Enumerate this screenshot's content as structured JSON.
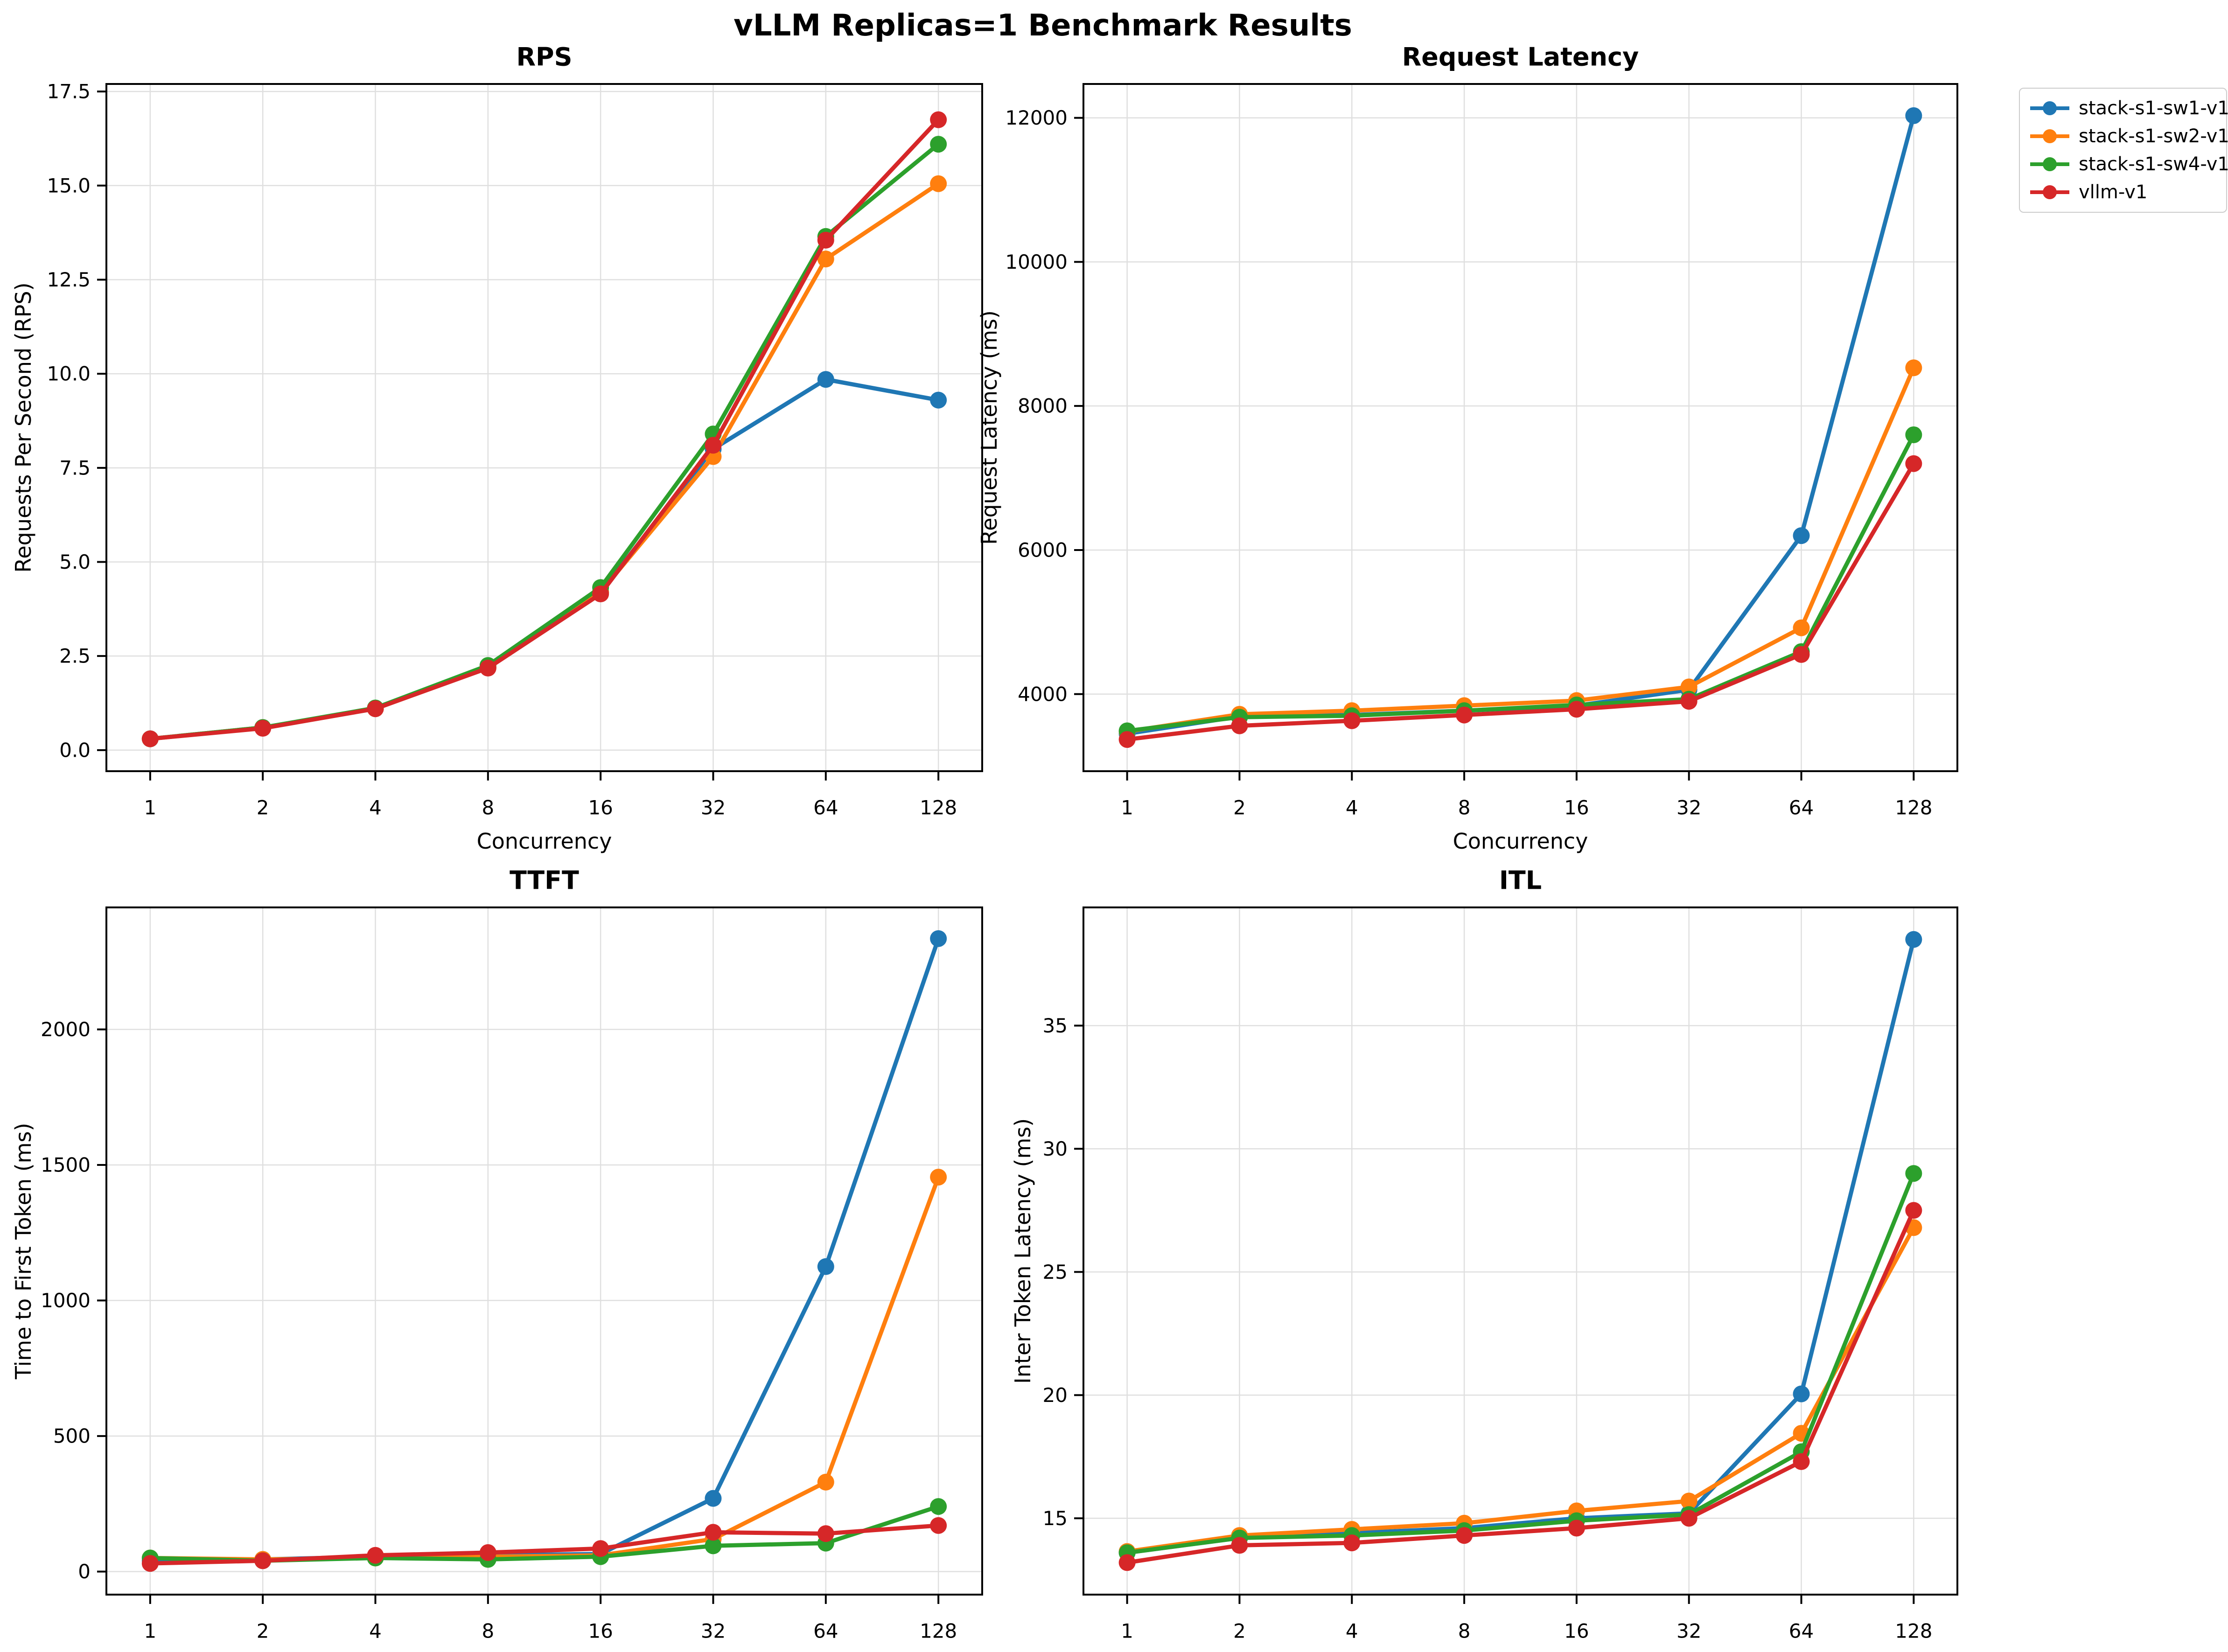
{
  "page_title": "vLLM Replicas=1 Benchmark Results",
  "legend": {
    "items": [
      {
        "label": "stack-s1-sw1-v1",
        "color": "#1f77b4"
      },
      {
        "label": "stack-s1-sw2-v1",
        "color": "#ff7f0e"
      },
      {
        "label": "stack-s1-sw4-v1",
        "color": "#2ca02c"
      },
      {
        "label": "vllm-v1",
        "color": "#d62728"
      }
    ]
  },
  "chart_data": [
    {
      "type": "line",
      "title": "RPS",
      "xlabel": "Concurrency",
      "ylabel": "Requests Per Second (RPS)",
      "grid": true,
      "x_categories": [
        "1",
        "2",
        "4",
        "8",
        "16",
        "32",
        "64",
        "128"
      ],
      "ylim": [
        -0.56,
        17.7
      ],
      "yticks": [
        {
          "v": 0,
          "label": "0.0"
        },
        {
          "v": 2.5,
          "label": "2.5"
        },
        {
          "v": 5,
          "label": "5.0"
        },
        {
          "v": 7.5,
          "label": "7.5"
        },
        {
          "v": 10,
          "label": "10.0"
        },
        {
          "v": 12.5,
          "label": "12.5"
        },
        {
          "v": 15,
          "label": "15.0"
        },
        {
          "v": 17.5,
          "label": "17.5"
        }
      ],
      "series": [
        {
          "name": "stack-s1-sw1-v1",
          "color": "#1f77b4",
          "values": [
            0.3,
            0.6,
            1.1,
            2.2,
            4.2,
            8.0,
            9.85,
            9.3
          ]
        },
        {
          "name": "stack-s1-sw2-v1",
          "color": "#ff7f0e",
          "values": [
            0.3,
            0.6,
            1.1,
            2.2,
            4.2,
            7.8,
            13.05,
            15.05
          ]
        },
        {
          "name": "stack-s1-sw4-v1",
          "color": "#2ca02c",
          "values": [
            0.3,
            0.6,
            1.12,
            2.25,
            4.32,
            8.4,
            13.65,
            16.1
          ]
        },
        {
          "name": "vllm-v1",
          "color": "#d62728",
          "values": [
            0.3,
            0.58,
            1.1,
            2.18,
            4.15,
            8.1,
            13.55,
            16.75
          ]
        }
      ]
    },
    {
      "type": "line",
      "title": "Request Latency",
      "xlabel": "Concurrency",
      "ylabel": "Request Latency (ms)",
      "grid": true,
      "x_categories": [
        "1",
        "2",
        "4",
        "8",
        "16",
        "32",
        "64",
        "128"
      ],
      "ylim": [
        2930,
        12470
      ],
      "yticks": [
        {
          "v": 4000,
          "label": "4000"
        },
        {
          "v": 6000,
          "label": "6000"
        },
        {
          "v": 8000,
          "label": "8000"
        },
        {
          "v": 10000,
          "label": "10000"
        },
        {
          "v": 12000,
          "label": "12000"
        }
      ],
      "series": [
        {
          "name": "stack-s1-sw1-v1",
          "color": "#1f77b4",
          "values": [
            3450,
            3690,
            3710,
            3770,
            3840,
            4060,
            6200,
            12030
          ]
        },
        {
          "name": "stack-s1-sw2-v1",
          "color": "#ff7f0e",
          "values": [
            3480,
            3720,
            3770,
            3840,
            3910,
            4100,
            4920,
            8530
          ]
        },
        {
          "name": "stack-s1-sw4-v1",
          "color": "#2ca02c",
          "values": [
            3490,
            3680,
            3700,
            3770,
            3850,
            3930,
            4590,
            7600
          ]
        },
        {
          "name": "vllm-v1",
          "color": "#d62728",
          "values": [
            3370,
            3560,
            3630,
            3710,
            3790,
            3900,
            4550,
            7200
          ]
        }
      ]
    },
    {
      "type": "line",
      "title": "TTFT",
      "xlabel": "Concurrency",
      "ylabel": "Time to First Token (ms)",
      "grid": true,
      "x_categories": [
        "1",
        "2",
        "4",
        "8",
        "16",
        "32",
        "64",
        "128"
      ],
      "ylim": [
        -85,
        2450
      ],
      "yticks": [
        {
          "v": 0,
          "label": "0"
        },
        {
          "v": 500,
          "label": "500"
        },
        {
          "v": 1000,
          "label": "1000"
        },
        {
          "v": 1500,
          "label": "1500"
        },
        {
          "v": 2000,
          "label": "2000"
        }
      ],
      "series": [
        {
          "name": "stack-s1-sw1-v1",
          "color": "#1f77b4",
          "values": [
            40,
            45,
            55,
            60,
            65,
            270,
            1125,
            2335
          ]
        },
        {
          "name": "stack-s1-sw2-v1",
          "color": "#ff7f0e",
          "values": [
            50,
            45,
            50,
            55,
            60,
            120,
            330,
            1455
          ]
        },
        {
          "name": "stack-s1-sw4-v1",
          "color": "#2ca02c",
          "values": [
            50,
            40,
            50,
            45,
            55,
            95,
            105,
            240
          ]
        },
        {
          "name": "vllm-v1",
          "color": "#d62728",
          "values": [
            30,
            40,
            60,
            70,
            85,
            145,
            140,
            170
          ]
        }
      ]
    },
    {
      "type": "line",
      "title": "ITL",
      "xlabel": "Concurrency",
      "ylabel": "Inter Token Latency (ms)",
      "grid": true,
      "x_categories": [
        "1",
        "2",
        "4",
        "8",
        "16",
        "32",
        "64",
        "128"
      ],
      "ylim": [
        11.9,
        39.8
      ],
      "yticks": [
        {
          "v": 15,
          "label": "15"
        },
        {
          "v": 20,
          "label": "20"
        },
        {
          "v": 25,
          "label": "25"
        },
        {
          "v": 30,
          "label": "30"
        },
        {
          "v": 35,
          "label": "35"
        }
      ],
      "series": [
        {
          "name": "stack-s1-sw1-v1",
          "color": "#1f77b4",
          "values": [
            13.6,
            14.2,
            14.4,
            14.6,
            15.0,
            15.2,
            20.05,
            38.5
          ]
        },
        {
          "name": "stack-s1-sw2-v1",
          "color": "#ff7f0e",
          "values": [
            13.65,
            14.3,
            14.55,
            14.8,
            15.3,
            15.7,
            18.45,
            26.8
          ]
        },
        {
          "name": "stack-s1-sw4-v1",
          "color": "#2ca02c",
          "values": [
            13.6,
            14.2,
            14.3,
            14.5,
            14.9,
            15.15,
            17.7,
            29.0
          ]
        },
        {
          "name": "vllm-v1",
          "color": "#d62728",
          "values": [
            13.2,
            13.9,
            14.0,
            14.3,
            14.6,
            15.0,
            17.3,
            27.5
          ]
        }
      ]
    }
  ]
}
